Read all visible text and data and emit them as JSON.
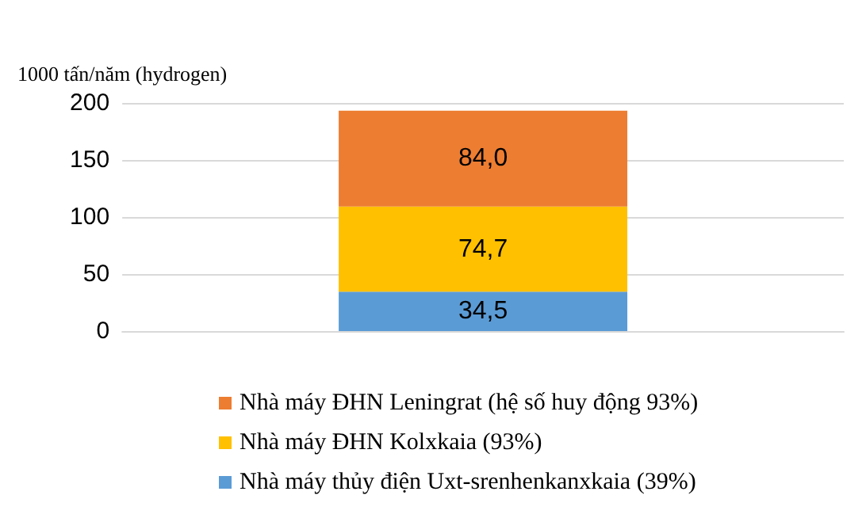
{
  "chart_data": {
    "type": "bar",
    "stacked": true,
    "categories": [
      null
    ],
    "ylabel": "1000 tấn/năm (hydrogen)",
    "ylim": [
      0,
      200
    ],
    "yticks": [
      0,
      50,
      100,
      150,
      200
    ],
    "grid": "y",
    "legend": "bottom",
    "series": [
      {
        "name": "Nhà máy thủy điện Uxt-srenhenkanxkaia (39%)",
        "color": "#5b9bd5",
        "values": [
          34.5
        ],
        "value_labels": [
          "34,5"
        ]
      },
      {
        "name": "Nhà máy ĐHN Kolxkaia (93%)",
        "color": "#ffc000",
        "values": [
          74.7
        ],
        "value_labels": [
          "74,7"
        ]
      },
      {
        "name": "Nhà máy ĐHN Leningrat (hệ số huy động 93%)",
        "color": "#ed7d31",
        "values": [
          84.0
        ],
        "value_labels": [
          "84,0"
        ]
      }
    ]
  }
}
